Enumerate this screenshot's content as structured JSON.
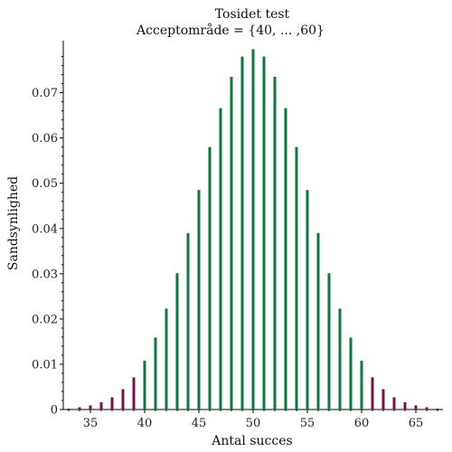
{
  "chart_data": {
    "type": "bar",
    "title": "Tosidet test",
    "subtitle": "Acceptområde = {40, ... ,60}",
    "xlabel": "Antal succes",
    "ylabel": "Sandsynlighed",
    "xlim": [
      32.5,
      67.5
    ],
    "ylim": [
      0,
      0.0815
    ],
    "x_ticks": [
      35,
      40,
      45,
      50,
      55,
      60,
      65
    ],
    "x_tick_labels": [
      "35",
      "40",
      "45",
      "50",
      "55",
      "60",
      "65"
    ],
    "y_ticks": [
      0,
      0.01,
      0.02,
      0.03,
      0.04,
      0.05,
      0.06,
      0.07
    ],
    "y_tick_labels": [
      "0",
      "0.01",
      "0.02",
      "0.03",
      "0.04",
      "0.05",
      "0.06",
      "0.07"
    ],
    "grid": false,
    "series": [
      {
        "x": [
          33,
          34,
          35,
          36,
          37,
          38,
          39,
          61,
          62,
          63,
          64,
          65,
          66,
          67
        ],
        "values": [
          0.0002,
          0.0005,
          0.0009,
          0.0016,
          0.0027,
          0.0045,
          0.0071,
          0.0071,
          0.0045,
          0.0027,
          0.0016,
          0.0009,
          0.0005,
          0.0002
        ],
        "color": "#7b0f4c"
      },
      {
        "x": [
          40,
          41,
          42,
          43,
          44,
          45,
          46,
          47,
          48,
          49,
          50,
          51,
          52,
          53,
          54,
          55,
          56,
          57,
          58,
          59,
          60
        ],
        "values": [
          0.0108,
          0.0159,
          0.0223,
          0.0301,
          0.039,
          0.0485,
          0.058,
          0.0666,
          0.0735,
          0.078,
          0.0796,
          0.078,
          0.0735,
          0.0666,
          0.058,
          0.0485,
          0.039,
          0.0301,
          0.0223,
          0.0159,
          0.0108
        ],
        "color": "#0b7a3b"
      }
    ]
  }
}
